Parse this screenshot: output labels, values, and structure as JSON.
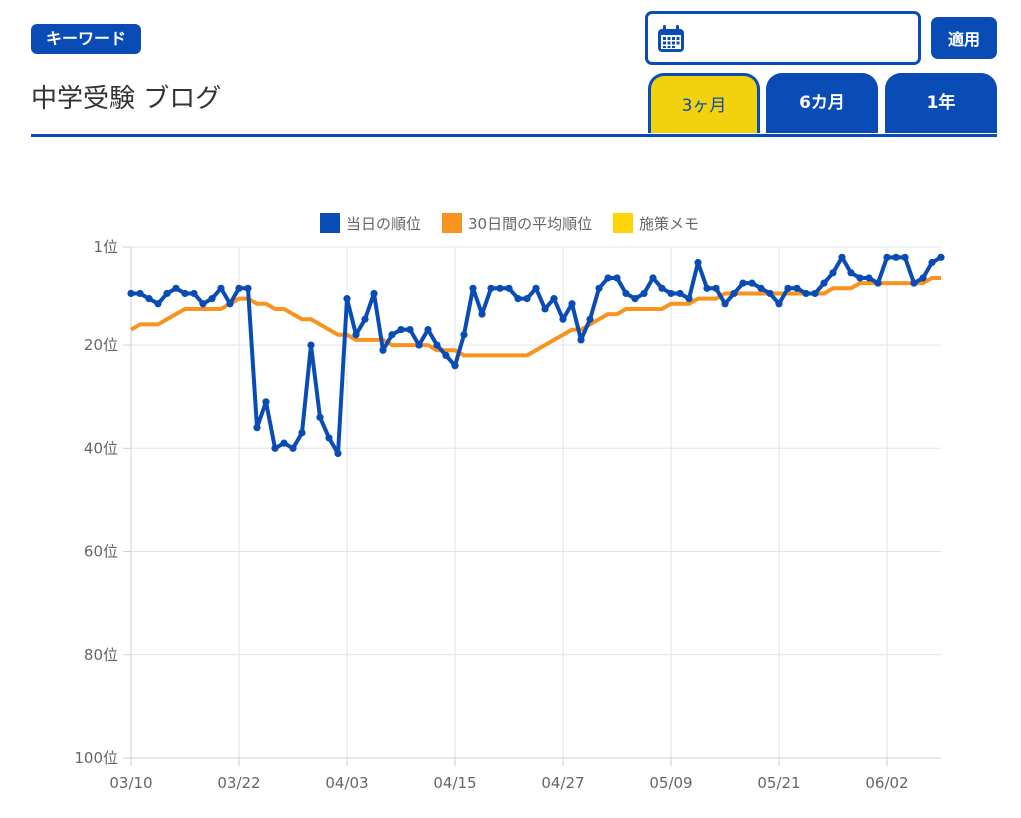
{
  "keyword_badge": "キーワード",
  "page_title": "中学受験 ブログ",
  "date_input": {
    "value": "",
    "placeholder": ""
  },
  "apply_label": "適用",
  "tabs": [
    {
      "label": "3ヶ月",
      "active": true
    },
    {
      "label": "6カ月",
      "active": false
    },
    {
      "label": "1年",
      "active": false
    }
  ],
  "colors": {
    "brand": "#0a4cb5",
    "accent": "#f2d20c",
    "average": "#f7931e",
    "memo": "#ffd400"
  },
  "chart_data": {
    "type": "line",
    "legend": [
      "当日の順位",
      "30日間の平均順位",
      "施策メモ"
    ],
    "legend_position": "top",
    "y_ticks": [
      "1位",
      "20位",
      "40位",
      "60位",
      "80位",
      "100位"
    ],
    "y_tick_values": [
      1,
      20,
      40,
      60,
      80,
      100
    ],
    "y_reversed": true,
    "ylim": [
      1,
      100
    ],
    "x_ticks": [
      "03/10",
      "03/22",
      "04/03",
      "04/15",
      "04/27",
      "05/09",
      "05/21",
      "06/02"
    ],
    "grid": true,
    "series": [
      {
        "name": "当日の順位",
        "color": "#0a4cb5",
        "values": [
          10,
          10,
          11,
          12,
          10,
          9,
          10,
          10,
          12,
          11,
          9,
          12,
          9,
          9,
          36,
          31,
          40,
          39,
          40,
          37,
          20,
          34,
          38,
          41,
          11,
          18,
          15,
          10,
          21,
          18,
          17,
          17,
          20,
          17,
          20,
          22,
          24,
          18,
          9,
          14,
          9,
          9,
          9,
          11,
          11,
          9,
          13,
          11,
          15,
          12,
          19,
          15,
          9,
          7,
          7,
          10,
          11,
          10,
          7,
          9,
          10,
          10,
          11,
          4,
          9,
          9,
          12,
          10,
          8,
          8,
          9,
          10,
          12,
          9,
          9,
          10,
          10,
          8,
          6,
          3,
          6,
          7,
          7,
          8,
          3,
          3,
          3,
          8,
          7,
          4,
          3
        ]
      },
      {
        "name": "30日間の平均順位",
        "color": "#f7931e",
        "values": [
          17,
          16,
          16,
          16,
          15,
          14,
          13,
          13,
          13,
          13,
          13,
          12,
          11,
          11,
          12,
          12,
          13,
          13,
          14,
          15,
          15,
          16,
          17,
          18,
          18,
          19,
          19,
          19,
          19,
          20,
          20,
          20,
          20,
          20,
          21,
          21,
          21,
          22,
          22,
          22,
          22,
          22,
          22,
          22,
          22,
          21,
          20,
          19,
          18,
          17,
          17,
          16,
          15,
          14,
          14,
          13,
          13,
          13,
          13,
          13,
          12,
          12,
          12,
          11,
          11,
          11,
          10,
          10,
          10,
          10,
          10,
          10,
          10,
          10,
          10,
          10,
          10,
          10,
          9,
          9,
          9,
          8,
          8,
          8,
          8,
          8,
          8,
          8,
          8,
          7,
          7
        ]
      }
    ]
  }
}
